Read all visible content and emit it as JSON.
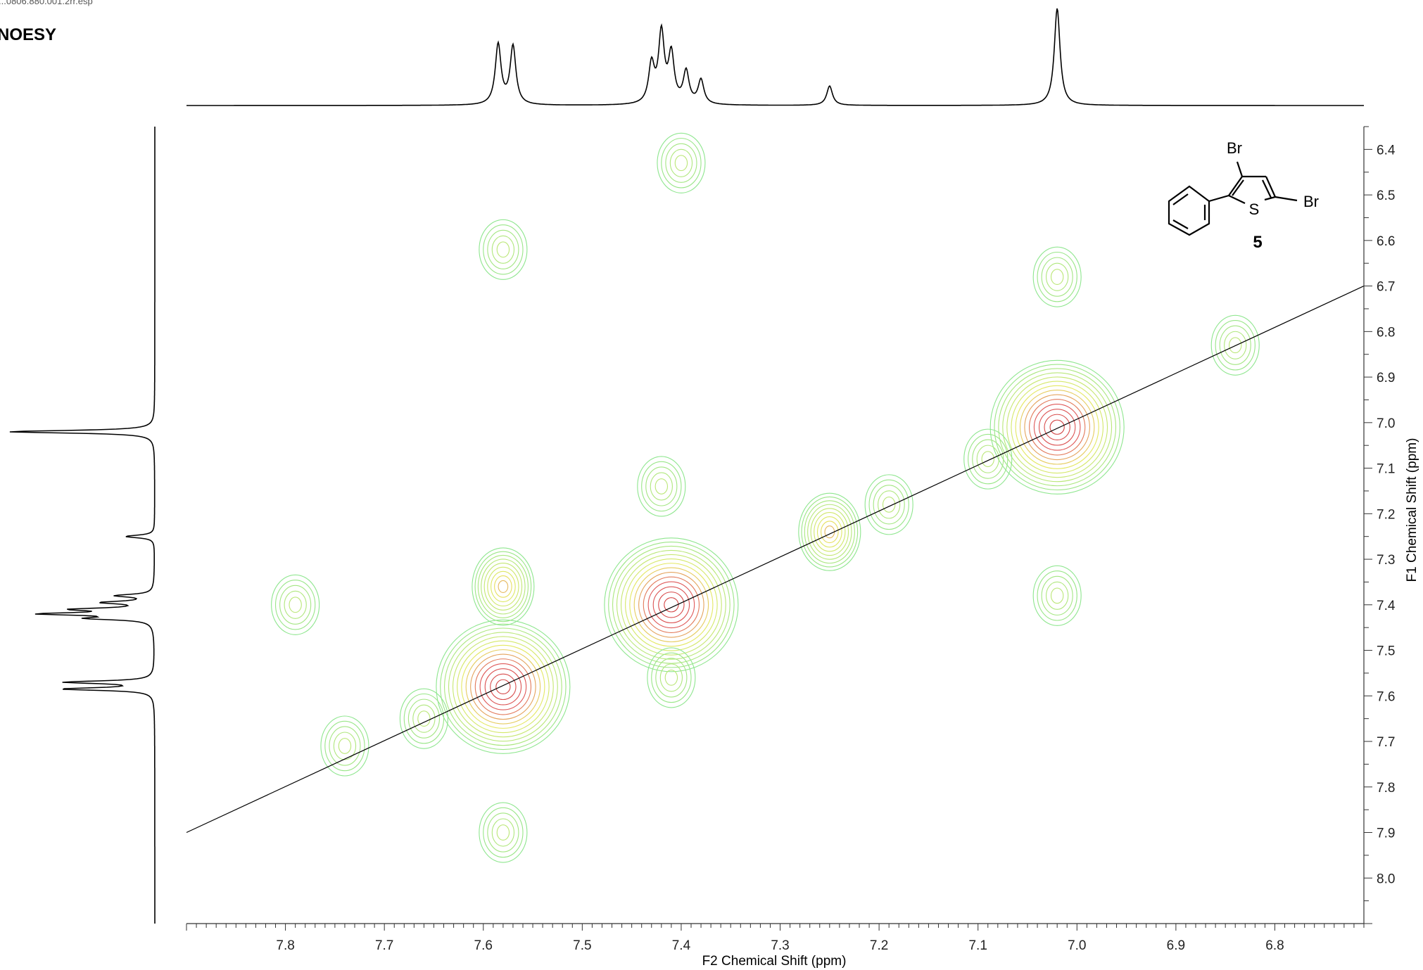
{
  "header": {
    "filename": "...0806.880.001.2rr.esp",
    "experiment": "NOESY"
  },
  "molecule": {
    "atom_labels": [
      "Br",
      "Br",
      "S"
    ],
    "compound_number": "5"
  },
  "chart_data": {
    "type": "heatmap",
    "subtype": "2D NMR NOESY contour plot",
    "title": "NOESY",
    "xlabel": "F2 Chemical Shift (ppm)",
    "ylabel": "F1 Chemical Shift (ppm)",
    "xlim": [
      7.9,
      6.71
    ],
    "ylim": [
      6.35,
      8.1
    ],
    "x_ticks": [
      "7.8",
      "7.7",
      "7.6",
      "7.5",
      "7.4",
      "7.3",
      "7.2",
      "7.1",
      "7.0",
      "6.9",
      "6.8"
    ],
    "y_ticks": [
      "6.4",
      "6.5",
      "6.6",
      "6.7",
      "6.8",
      "6.9",
      "7.0",
      "7.1",
      "7.2",
      "7.3",
      "7.4",
      "7.5",
      "7.6",
      "7.7",
      "7.8",
      "7.9",
      "8.0"
    ],
    "diagonal": {
      "from": [
        7.9,
        7.9
      ],
      "to": [
        6.71,
        6.7
      ]
    },
    "diagonal_peaks": [
      {
        "f2": 7.58,
        "f1": 7.58,
        "intensity": "strong"
      },
      {
        "f2": 7.41,
        "f1": 7.4,
        "intensity": "strong"
      },
      {
        "f2": 7.25,
        "f1": 7.24,
        "intensity": "medium"
      },
      {
        "f2": 7.02,
        "f1": 7.01,
        "intensity": "strong"
      }
    ],
    "cross_peaks": [
      {
        "f2": 7.58,
        "f1": 7.36,
        "intensity": "medium"
      },
      {
        "f2": 7.41,
        "f1": 7.56,
        "intensity": "weak"
      },
      {
        "f2": 7.74,
        "f1": 7.71,
        "intensity": "weak"
      },
      {
        "f2": 7.66,
        "f1": 7.65,
        "intensity": "weak"
      },
      {
        "f2": 6.84,
        "f1": 6.83,
        "intensity": "weak"
      },
      {
        "f2": 7.58,
        "f1": 6.62,
        "intensity": "weak"
      },
      {
        "f2": 7.4,
        "f1": 6.43,
        "intensity": "weak"
      },
      {
        "f2": 7.02,
        "f1": 6.68,
        "intensity": "weak"
      },
      {
        "f2": 7.02,
        "f1": 7.38,
        "intensity": "weak"
      },
      {
        "f2": 7.19,
        "f1": 7.18,
        "intensity": "weak"
      },
      {
        "f2": 7.09,
        "f1": 7.08,
        "intensity": "weak"
      },
      {
        "f2": 7.42,
        "f1": 7.14,
        "intensity": "weak"
      },
      {
        "f2": 7.58,
        "f1": 7.9,
        "intensity": "weak"
      },
      {
        "f2": 7.79,
        "f1": 7.4,
        "intensity": "weak"
      }
    ],
    "f2_projection_peaks": [
      {
        "ppm": 7.585,
        "height": 0.62
      },
      {
        "ppm": 7.57,
        "height": 0.6
      },
      {
        "ppm": 7.42,
        "height": 0.72
      },
      {
        "ppm": 7.43,
        "height": 0.4
      },
      {
        "ppm": 7.41,
        "height": 0.5
      },
      {
        "ppm": 7.395,
        "height": 0.33
      },
      {
        "ppm": 7.38,
        "height": 0.25
      },
      {
        "ppm": 7.25,
        "height": 0.2
      },
      {
        "ppm": 7.02,
        "height": 1.0
      }
    ],
    "colors": {
      "contour_low": "#8ee68e",
      "contour_mid": "#e8e860",
      "contour_high": "#e05a5a",
      "contour_peak": "#d04040",
      "negative": "#60b0d8",
      "trace": "#000000"
    }
  }
}
